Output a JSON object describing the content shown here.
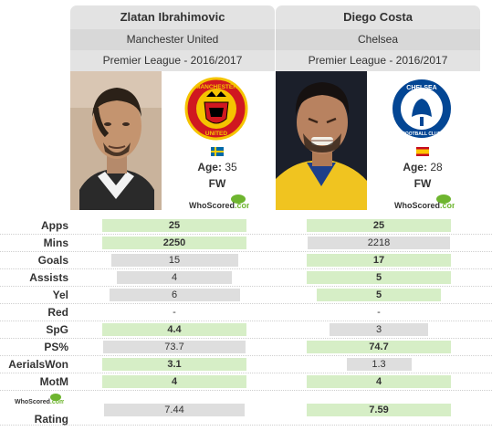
{
  "players": [
    {
      "name": "Zlatan Ibrahimovic",
      "team": "Manchester United",
      "competition": "Premier League - 2016/2017",
      "age_label": "Age:",
      "age": "35",
      "position": "FW",
      "flag": "sweden-flag",
      "crest": "manchester-united-crest",
      "crest_text": [
        "MANCHESTER",
        "UNITED"
      ],
      "ws_logo": "WhoScored.com"
    },
    {
      "name": "Diego Costa",
      "team": "Chelsea",
      "competition": "Premier League - 2016/2017",
      "age_label": "Age:",
      "age": "28",
      "position": "FW",
      "flag": "spain-flag",
      "crest": "chelsea-crest",
      "crest_text": [
        "CHELSEA",
        "FOOTBALL CLUB"
      ],
      "ws_logo": "WhoScored.com"
    }
  ],
  "stats": [
    {
      "label": "Apps",
      "left": "25",
      "right": "25",
      "left_fill": 0.95,
      "right_fill": 0.95,
      "winner": "both"
    },
    {
      "label": "Mins",
      "left": "2250",
      "right": "2218",
      "left_fill": 0.95,
      "right_fill": 0.94,
      "winner": "left"
    },
    {
      "label": "Goals",
      "left": "15",
      "right": "17",
      "left_fill": 0.84,
      "right_fill": 0.95,
      "winner": "right"
    },
    {
      "label": "Assists",
      "left": "4",
      "right": "5",
      "left_fill": 0.76,
      "right_fill": 0.95,
      "winner": "right"
    },
    {
      "label": "Yel",
      "left": "6",
      "right": "5",
      "left_fill": 0.86,
      "right_fill": 0.82,
      "winner": "right"
    },
    {
      "label": "Red",
      "left": "-",
      "right": "-",
      "left_fill": 0,
      "right_fill": 0,
      "winner": "none"
    },
    {
      "label": "SpG",
      "left": "4.4",
      "right": "3",
      "left_fill": 0.95,
      "right_fill": 0.65,
      "winner": "left"
    },
    {
      "label": "PS%",
      "left": "73.7",
      "right": "74.7",
      "left_fill": 0.94,
      "right_fill": 0.95,
      "winner": "right"
    },
    {
      "label": "AerialsWon",
      "left": "3.1",
      "right": "1.3",
      "left_fill": 0.95,
      "right_fill": 0.43,
      "winner": "left"
    },
    {
      "label": "MotM",
      "left": "4",
      "right": "4",
      "left_fill": 0.95,
      "right_fill": 0.95,
      "winner": "both"
    },
    {
      "label": "Rating",
      "left": "7.44",
      "right": "7.59",
      "left_fill": 0.93,
      "right_fill": 0.95,
      "winner": "right"
    }
  ],
  "rating_logo": "WhoScored.com",
  "colors": {
    "win_bar": "#d6eec6",
    "lose_bar": "#dedede",
    "header_bg": "#e3e3e3",
    "man_utd_red": "#d01820",
    "man_utd_gold": "#f5c400",
    "chelsea_blue": "#034694",
    "whoscored_green": "#6eb52f"
  }
}
